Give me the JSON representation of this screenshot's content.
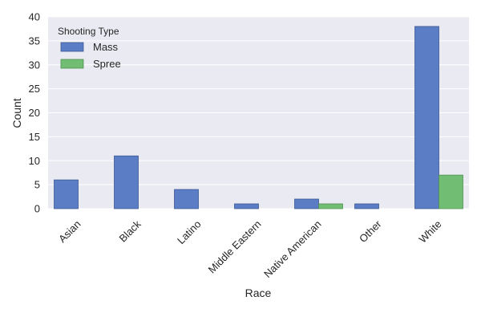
{
  "chart_data": {
    "type": "bar",
    "categories": [
      "Asian",
      "Black",
      "Latino",
      "Middle Eastern",
      "Native American",
      "Other",
      "White"
    ],
    "series": [
      {
        "name": "Mass",
        "values": [
          6,
          11,
          4,
          1,
          2,
          1,
          38
        ],
        "color": "#5a7dc6"
      },
      {
        "name": "Spree",
        "values": [
          0,
          0,
          0,
          0,
          1,
          0,
          7
        ],
        "color": "#72bd74"
      }
    ],
    "xlabel": "Race",
    "ylabel": "Count",
    "ylim": [
      0,
      40
    ],
    "yticks": [
      0,
      5,
      10,
      15,
      20,
      25,
      30,
      35,
      40
    ],
    "legend_title": "Shooting Type",
    "legend_position": "top-left",
    "grid": true,
    "background_color": "#eaeaf2"
  }
}
